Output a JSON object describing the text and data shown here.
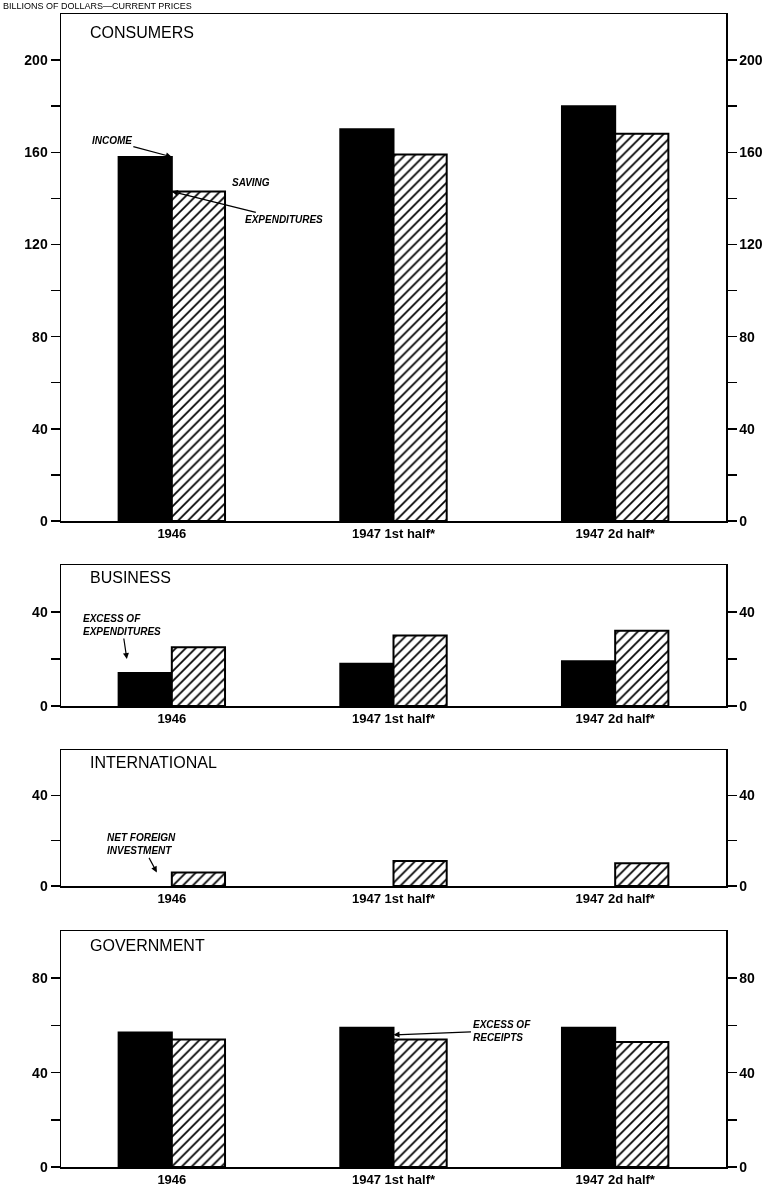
{
  "chart_data": [
    {
      "type": "bar",
      "title": "CONSUMERS",
      "subtitle": "BILLIONS OF DOLLARS—CURRENT PRICES",
      "categories": [
        "1946",
        "1947 1st half*",
        "1947 2d half*"
      ],
      "series": [
        {
          "color": "#000000",
          "values": [
            158,
            170,
            180
          ]
        },
        {
          "color": "#000000",
          "values": [
            143,
            159,
            168
          ]
        }
      ],
      "ylim": [
        0,
        220
      ],
      "yticks": [
        0,
        {
          "value": 20,
          "label": null
        },
        40,
        {
          "value": 60,
          "label": null
        },
        80,
        {
          "value": 100,
          "label": null
        },
        120,
        {
          "value": 140,
          "label": null
        },
        160,
        {
          "value": 180,
          "label": null
        },
        200
      ],
      "y2lim": [
        0,
        220
      ],
      "y2ticks": [
        0,
        {
          "value": 20,
          "label": null
        },
        40,
        {
          "value": 60,
          "label": null
        },
        80,
        {
          "value": 100,
          "label": null
        },
        120,
        {
          "value": 140,
          "label": null
        },
        160,
        {
          "value": 180,
          "label": null
        },
        200
      ],
      "annotations": [
        {
          "text": "INCOME",
          "x": "1946",
          "y": 158
        },
        "SAVING",
        {
          "text": "EXPENDITURES",
          "x": "1946",
          "y": 143
        }
      ]
    },
    {
      "type": "bar",
      "title": "BUSINESS",
      "categories": [
        "1946",
        "1947 1st half*",
        "1947 2d half*"
      ],
      "series": [
        {
          "color": "#000000",
          "values": [
            14,
            18,
            19
          ]
        },
        {
          "color": "#000000",
          "values": [
            25,
            30,
            32
          ]
        }
      ],
      "ylim": [
        0,
        60
      ],
      "yticks": [
        0,
        {
          "value": 20,
          "label": null
        },
        40
      ],
      "y2lim": [
        0,
        60
      ],
      "y2ticks": [
        0,
        {
          "value": 20,
          "label": null
        },
        40
      ],
      "annotations": [
        {
          "text": "EXCESS OF\nEXPENDITURES",
          "x": "1946",
          "y": 20
        }
      ]
    },
    {
      "type": "bar",
      "title": "INTERNATIONAL",
      "categories": [
        "1946",
        "1947 1st half*",
        "1947 2d half*"
      ],
      "series": [
        {
          "color": "#000000",
          "values": [
            null,
            null,
            null
          ]
        },
        {
          "color": "#000000",
          "values": [
            6,
            11,
            10
          ]
        }
      ],
      "ylim": [
        0,
        60
      ],
      "yticks": [
        0,
        {
          "value": 20,
          "label": null
        },
        40
      ],
      "y2lim": [
        0,
        60
      ],
      "y2ticks": [
        0,
        {
          "value": 20,
          "label": null
        },
        40
      ],
      "annotations": [
        {
          "text": "NET FOREIGN\nINVESTMENT",
          "x": "1946",
          "y": 6
        }
      ]
    },
    {
      "type": "bar",
      "title": "GOVERNMENT",
      "categories": [
        "1946",
        "1947 1st half*",
        "1947 2d half*"
      ],
      "series": [
        {
          "color": "#000000",
          "values": [
            57,
            59,
            59
          ]
        },
        {
          "color": "#000000",
          "values": [
            54,
            54,
            53
          ]
        }
      ],
      "ylim": [
        0,
        100
      ],
      "yticks": [
        0,
        {
          "value": 20,
          "label": null
        },
        40,
        {
          "value": 60,
          "label": null
        },
        80
      ],
      "y2lim": [
        0,
        100
      ],
      "y2ticks": [
        0,
        {
          "value": 20,
          "label": null
        },
        40,
        {
          "value": 60,
          "label": null
        },
        80
      ],
      "annotations": [
        {
          "text": "EXCESS OF\nRECEIPTS",
          "x": "1947 1st half*",
          "y": 56
        }
      ]
    }
  ]
}
